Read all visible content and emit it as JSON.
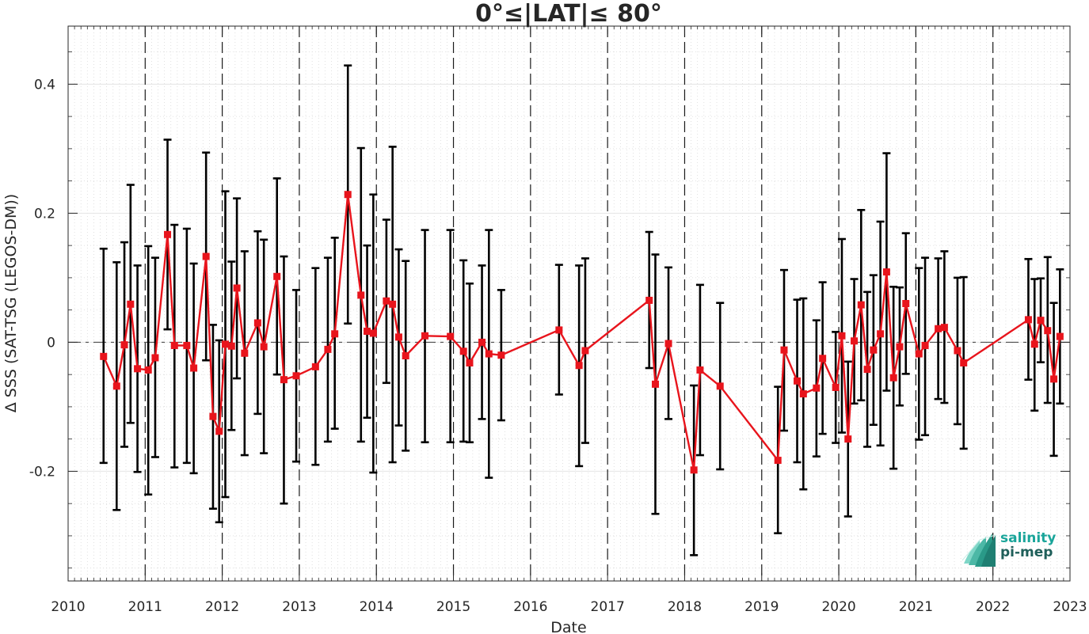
{
  "chart_data": {
    "type": "line",
    "title": "0°≤|LAT|≤ 80°",
    "xlabel": "Date",
    "ylabel": "Δ SSS (SAT-TSG (LEGOS-DM))",
    "xlim": [
      2010,
      2023
    ],
    "ylim": [
      -0.37,
      0.49
    ],
    "x_ticks": [
      "2010",
      "2011",
      "2012",
      "2013",
      "2014",
      "2015",
      "2016",
      "2017",
      "2018",
      "2019",
      "2020",
      "2021",
      "2022",
      "2023"
    ],
    "y_ticks": [
      "-0.2",
      "0",
      "0.2",
      "0.4"
    ],
    "grid": true,
    "series": [
      {
        "color": "#e8141c",
        "marker": "square",
        "error_bar_color": "#000000",
        "points": [
          {
            "x": 2010.46,
            "y": -0.022,
            "lo": -0.187,
            "hi": 0.145
          },
          {
            "x": 2010.63,
            "y": -0.068,
            "lo": -0.26,
            "hi": 0.124
          },
          {
            "x": 2010.73,
            "y": -0.004,
            "lo": -0.162,
            "hi": 0.155
          },
          {
            "x": 2010.81,
            "y": 0.059,
            "lo": -0.125,
            "hi": 0.244
          },
          {
            "x": 2010.9,
            "y": -0.041,
            "lo": -0.201,
            "hi": 0.119
          },
          {
            "x": 2011.04,
            "y": -0.043,
            "lo": -0.236,
            "hi": 0.149
          },
          {
            "x": 2011.13,
            "y": -0.024,
            "lo": -0.178,
            "hi": 0.131
          },
          {
            "x": 2011.29,
            "y": 0.167,
            "lo": 0.02,
            "hi": 0.314
          },
          {
            "x": 2011.38,
            "y": -0.005,
            "lo": -0.194,
            "hi": 0.182
          },
          {
            "x": 2011.54,
            "y": -0.005,
            "lo": -0.187,
            "hi": 0.176
          },
          {
            "x": 2011.63,
            "y": -0.04,
            "lo": -0.203,
            "hi": 0.122
          },
          {
            "x": 2011.79,
            "y": 0.133,
            "lo": -0.028,
            "hi": 0.294
          },
          {
            "x": 2011.88,
            "y": -0.115,
            "lo": -0.258,
            "hi": 0.027
          },
          {
            "x": 2011.96,
            "y": -0.138,
            "lo": -0.279,
            "hi": 0.003
          },
          {
            "x": 2012.04,
            "y": -0.003,
            "lo": -0.24,
            "hi": 0.234
          },
          {
            "x": 2012.12,
            "y": -0.006,
            "lo": -0.136,
            "hi": 0.125
          },
          {
            "x": 2012.19,
            "y": 0.084,
            "lo": -0.056,
            "hi": 0.223
          },
          {
            "x": 2012.29,
            "y": -0.017,
            "lo": -0.175,
            "hi": 0.141
          },
          {
            "x": 2012.46,
            "y": 0.03,
            "lo": -0.111,
            "hi": 0.172
          },
          {
            "x": 2012.54,
            "y": -0.007,
            "lo": -0.172,
            "hi": 0.159
          },
          {
            "x": 2012.71,
            "y": 0.102,
            "lo": -0.05,
            "hi": 0.254
          },
          {
            "x": 2012.8,
            "y": -0.058,
            "lo": -0.25,
            "hi": 0.133
          },
          {
            "x": 2012.96,
            "y": -0.052,
            "lo": -0.185,
            "hi": 0.081
          },
          {
            "x": 2013.21,
            "y": -0.038,
            "lo": -0.19,
            "hi": 0.115
          },
          {
            "x": 2013.37,
            "y": -0.011,
            "lo": -0.154,
            "hi": 0.131
          },
          {
            "x": 2013.46,
            "y": 0.013,
            "lo": -0.134,
            "hi": 0.162
          },
          {
            "x": 2013.63,
            "y": 0.229,
            "lo": 0.029,
            "hi": 0.429
          },
          {
            "x": 2013.8,
            "y": 0.073,
            "lo": -0.154,
            "hi": 0.301
          },
          {
            "x": 2013.88,
            "y": 0.017,
            "lo": -0.117,
            "hi": 0.15
          },
          {
            "x": 2013.96,
            "y": 0.014,
            "lo": -0.202,
            "hi": 0.229
          },
          {
            "x": 2014.13,
            "y": 0.064,
            "lo": -0.063,
            "hi": 0.19
          },
          {
            "x": 2014.21,
            "y": 0.059,
            "lo": -0.186,
            "hi": 0.303
          },
          {
            "x": 2014.29,
            "y": 0.008,
            "lo": -0.129,
            "hi": 0.144
          },
          {
            "x": 2014.38,
            "y": -0.021,
            "lo": -0.168,
            "hi": 0.126
          },
          {
            "x": 2014.63,
            "y": 0.01,
            "lo": -0.155,
            "hi": 0.174
          },
          {
            "x": 2014.96,
            "y": 0.009,
            "lo": -0.155,
            "hi": 0.174
          },
          {
            "x": 2015.13,
            "y": -0.014,
            "lo": -0.154,
            "hi": 0.127
          },
          {
            "x": 2015.21,
            "y": -0.032,
            "lo": -0.155,
            "hi": 0.091
          },
          {
            "x": 2015.37,
            "y": 0.0,
            "lo": -0.119,
            "hi": 0.119
          },
          {
            "x": 2015.46,
            "y": -0.018,
            "lo": -0.21,
            "hi": 0.174
          },
          {
            "x": 2015.62,
            "y": -0.02,
            "lo": -0.121,
            "hi": 0.081
          },
          {
            "x": 2016.37,
            "y": 0.019,
            "lo": -0.081,
            "hi": 0.12
          },
          {
            "x": 2016.63,
            "y": -0.036,
            "lo": -0.192,
            "hi": 0.119
          },
          {
            "x": 2016.71,
            "y": -0.013,
            "lo": -0.156,
            "hi": 0.13
          },
          {
            "x": 2017.54,
            "y": 0.065,
            "lo": -0.04,
            "hi": 0.171
          },
          {
            "x": 2017.62,
            "y": -0.065,
            "lo": -0.266,
            "hi": 0.136
          },
          {
            "x": 2017.79,
            "y": -0.002,
            "lo": -0.119,
            "hi": 0.116
          },
          {
            "x": 2018.12,
            "y": -0.198,
            "lo": -0.33,
            "hi": -0.067
          },
          {
            "x": 2018.2,
            "y": -0.043,
            "lo": -0.175,
            "hi": 0.089
          },
          {
            "x": 2018.46,
            "y": -0.068,
            "lo": -0.197,
            "hi": 0.061
          },
          {
            "x": 2019.21,
            "y": -0.183,
            "lo": -0.296,
            "hi": -0.069
          },
          {
            "x": 2019.29,
            "y": -0.012,
            "lo": -0.137,
            "hi": 0.112
          },
          {
            "x": 2019.46,
            "y": -0.06,
            "lo": -0.186,
            "hi": 0.066
          },
          {
            "x": 2019.54,
            "y": -0.08,
            "lo": -0.228,
            "hi": 0.068
          },
          {
            "x": 2019.71,
            "y": -0.071,
            "lo": -0.177,
            "hi": 0.034
          },
          {
            "x": 2019.79,
            "y": -0.025,
            "lo": -0.142,
            "hi": 0.093
          },
          {
            "x": 2019.96,
            "y": -0.07,
            "lo": -0.156,
            "hi": 0.016
          },
          {
            "x": 2020.04,
            "y": 0.01,
            "lo": -0.14,
            "hi": 0.16
          },
          {
            "x": 2020.12,
            "y": -0.15,
            "lo": -0.27,
            "hi": -0.03
          },
          {
            "x": 2020.2,
            "y": 0.002,
            "lo": -0.095,
            "hi": 0.098
          },
          {
            "x": 2020.29,
            "y": 0.058,
            "lo": -0.09,
            "hi": 0.205
          },
          {
            "x": 2020.37,
            "y": -0.042,
            "lo": -0.162,
            "hi": 0.078
          },
          {
            "x": 2020.45,
            "y": -0.012,
            "lo": -0.128,
            "hi": 0.104
          },
          {
            "x": 2020.54,
            "y": 0.013,
            "lo": -0.16,
            "hi": 0.187
          },
          {
            "x": 2020.62,
            "y": 0.109,
            "lo": -0.075,
            "hi": 0.293
          },
          {
            "x": 2020.71,
            "y": -0.055,
            "lo": -0.196,
            "hi": 0.086
          },
          {
            "x": 2020.79,
            "y": -0.007,
            "lo": -0.098,
            "hi": 0.085
          },
          {
            "x": 2020.87,
            "y": 0.06,
            "lo": -0.049,
            "hi": 0.169
          },
          {
            "x": 2021.04,
            "y": -0.018,
            "lo": -0.151,
            "hi": 0.115
          },
          {
            "x": 2021.12,
            "y": -0.005,
            "lo": -0.144,
            "hi": 0.131
          },
          {
            "x": 2021.29,
            "y": 0.021,
            "lo": -0.088,
            "hi": 0.13
          },
          {
            "x": 2021.37,
            "y": 0.023,
            "lo": -0.094,
            "hi": 0.141
          },
          {
            "x": 2021.54,
            "y": -0.013,
            "lo": -0.127,
            "hi": 0.1
          },
          {
            "x": 2021.62,
            "y": -0.032,
            "lo": -0.165,
            "hi": 0.101
          },
          {
            "x": 2022.46,
            "y": 0.035,
            "lo": -0.058,
            "hi": 0.129
          },
          {
            "x": 2022.54,
            "y": -0.003,
            "lo": -0.106,
            "hi": 0.098
          },
          {
            "x": 2022.62,
            "y": 0.034,
            "lo": -0.031,
            "hi": 0.099
          },
          {
            "x": 2022.71,
            "y": 0.018,
            "lo": -0.094,
            "hi": 0.132
          },
          {
            "x": 2022.79,
            "y": -0.057,
            "lo": -0.176,
            "hi": 0.061
          },
          {
            "x": 2022.87,
            "y": 0.009,
            "lo": -0.095,
            "hi": 0.113
          }
        ]
      }
    ],
    "reference_line_y": 0,
    "year_boundary_lines": [
      2011,
      2012,
      2013,
      2014,
      2015,
      2016,
      2017,
      2018,
      2019,
      2020,
      2021,
      2022
    ]
  },
  "logo": {
    "line1": "salinity",
    "line2": "pi-mep"
  }
}
